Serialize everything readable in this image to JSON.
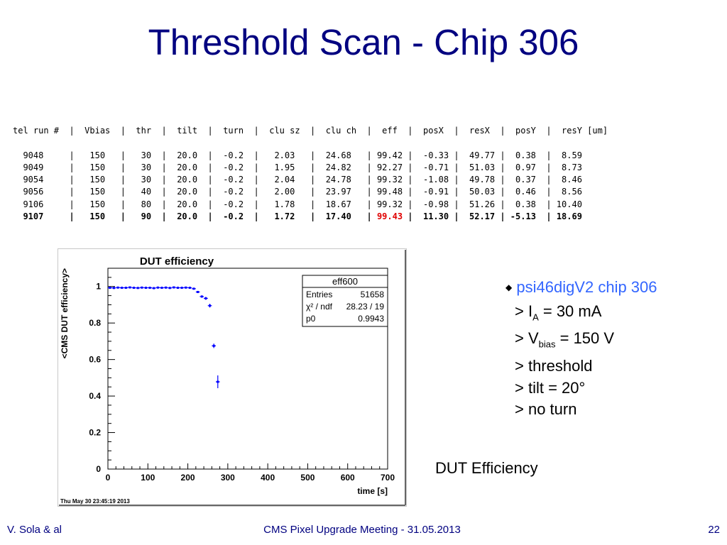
{
  "slide": {
    "title": "Threshold Scan - Chip 306",
    "caption": "DUT Efficiency",
    "footer_left": "V. Sola & al",
    "footer_center": "CMS Pixel Upgrade Meeting - 31.05.2013",
    "footer_right": "22"
  },
  "table": {
    "header": "tel run #  |  Vbias  |  thr  |  tilt  |  turn  |  clu sz  |  clu ch  |  eff  |  posX  |  resX  |  posY  |  resY [um]",
    "rows": [
      "  9048     |   150   |   30  |  20.0  |  -0.2  |   2.03   |  24.68   | 99.42 |  -0.33 |  49.77 |  0.38  |  8.59",
      "  9049     |   150   |   30  |  20.0  |  -0.2  |   1.95   |  24.82   | 92.27 |  -0.71 |  51.03 |  0.97  |  8.73",
      "  9054     |   150   |   30  |  20.0  |  -0.2  |   2.04   |  24.78   | 99.32 |  -1.08 |  49.78 |  0.37  |  8.46",
      "  9056     |   150   |   40  |  20.0  |  -0.2  |   2.00   |  23.97   | 99.48 |  -0.91 |  50.03 |  0.46  |  8.56",
      "  9106     |   150   |   80  |  20.0  |  -0.2  |   1.78   |  18.67   | 99.32 |  -0.98 |  51.26 |  0.38  | 10.40"
    ],
    "last_row_pre": "  9107     |   150   |   90  |  20.0  |  -0.2  |   1.72   |  17.40   | ",
    "last_row_eff": "99.43",
    "last_row_post": " |  11.30 |  52.17 | -5.13  | 18.69"
  },
  "bullets": {
    "head": "psi46digV2 chip 306",
    "ia_pre": "> I",
    "ia_sub": "A",
    "ia_post": " = 30 mA",
    "vb_pre": "> V",
    "vb_sub": "bias",
    "vb_post": " = 150 V",
    "threshold": "> threshold",
    "tilt": "> tilt = 20°",
    "turn": "> no turn"
  },
  "chart_data": {
    "type": "scatter",
    "title": "DUT efficiency",
    "xlabel": "time [s]",
    "ylabel": "<CMS DUT efficiency>",
    "xlim": [
      0,
      700
    ],
    "ylim": [
      0,
      1.1
    ],
    "xticks": [
      0,
      100,
      200,
      300,
      400,
      500,
      600,
      700
    ],
    "yticks": [
      0,
      0.2,
      0.4,
      0.6,
      0.8,
      1
    ],
    "timestamp": "Thu May 30 23:45:19 2013",
    "stats": {
      "name": "eff600",
      "rows": [
        {
          "label": "Entries",
          "value": "51658"
        },
        {
          "label": "χ² / ndf",
          "value": "28.23 / 19"
        },
        {
          "label": "p0",
          "value": "0.9943"
        }
      ]
    },
    "series": [
      {
        "x": [
          5,
          15,
          25,
          35,
          45,
          55,
          65,
          75,
          85,
          95,
          105,
          115,
          125,
          135,
          145,
          155,
          165,
          175,
          185,
          195,
          205,
          215,
          225,
          235,
          245,
          255,
          265,
          275
        ],
        "y": [
          0.993,
          0.992,
          0.994,
          0.993,
          0.993,
          0.995,
          0.993,
          0.992,
          0.994,
          0.993,
          0.993,
          0.991,
          0.994,
          0.993,
          0.994,
          0.992,
          0.995,
          0.993,
          0.993,
          0.994,
          0.993,
          0.988,
          0.97,
          0.945,
          0.935,
          0.895,
          0.675,
          0.478
        ],
        "yerr": [
          0.003,
          0.003,
          0.003,
          0.003,
          0.003,
          0.003,
          0.003,
          0.003,
          0.003,
          0.003,
          0.003,
          0.003,
          0.003,
          0.003,
          0.003,
          0.003,
          0.003,
          0.003,
          0.003,
          0.003,
          0.004,
          0.004,
          0.005,
          0.006,
          0.008,
          0.01,
          0.012,
          0.035
        ]
      }
    ],
    "color": "#0000ff"
  }
}
